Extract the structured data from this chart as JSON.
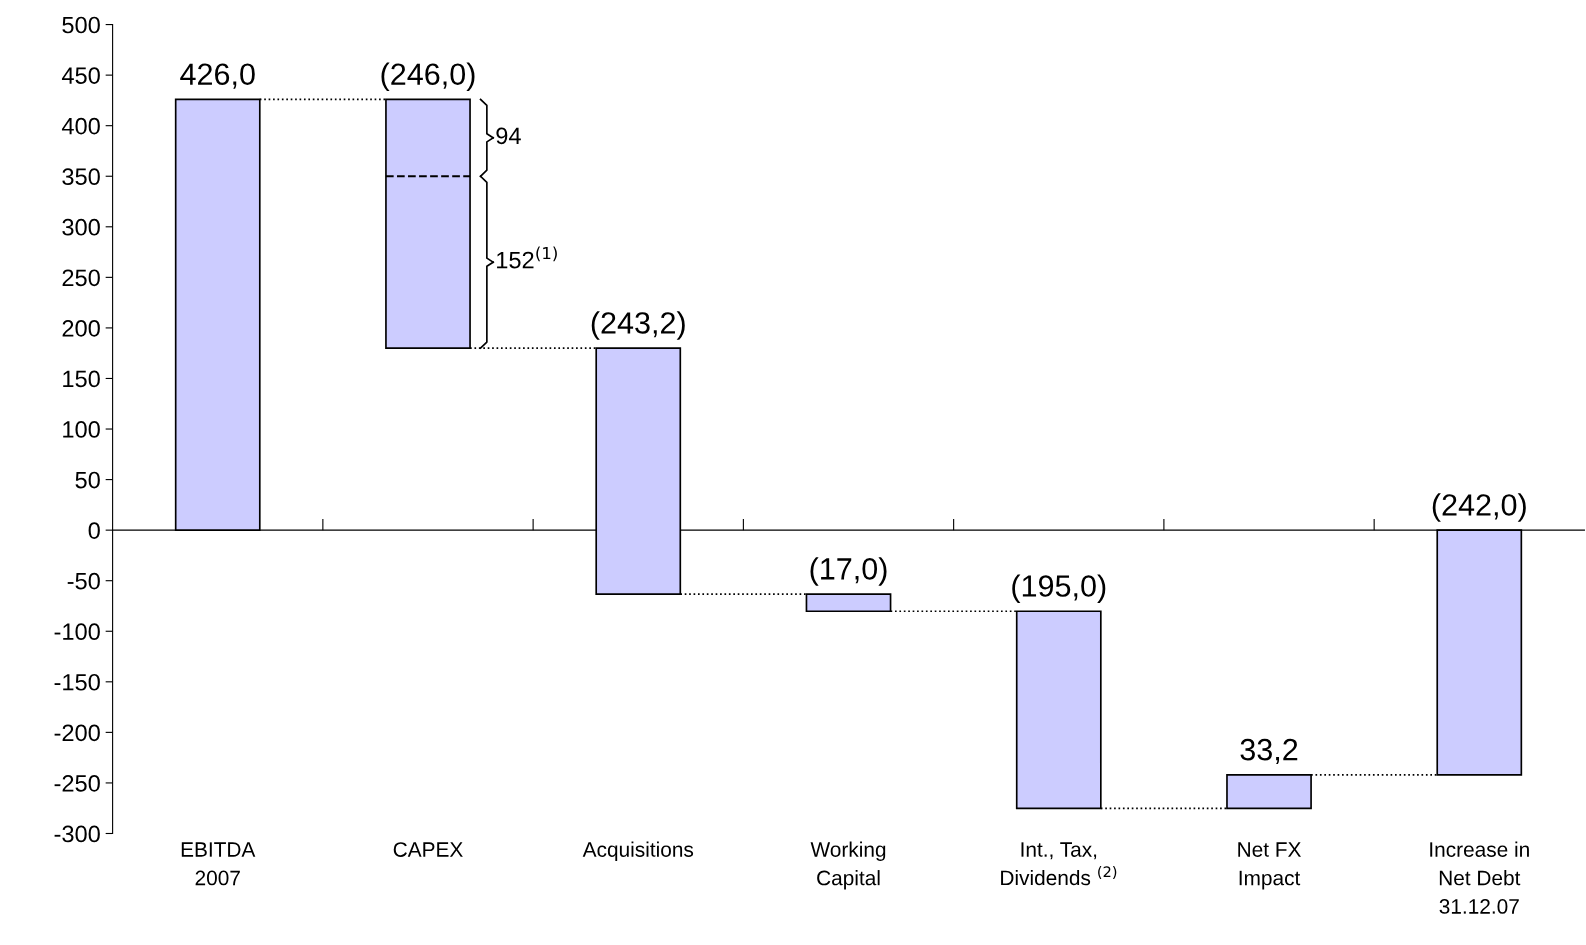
{
  "chart_data": {
    "type": "bar",
    "categories": [
      "EBITDA\n2007",
      "CAPEX",
      "Acquisitions",
      "Working\nCapital",
      "Int., Tax,\nDividends $^{(2)}$",
      "Net FX\nImpact",
      "Increase in\nNet Debt\n31.12.07"
    ],
    "values": [
      426.0,
      -246.0,
      -243.2,
      -17.0,
      -195.0,
      33.2,
      -242.0
    ],
    "base": [
      0,
      426.0,
      180.0,
      -63.2,
      -80.2,
      -275.2,
      0
    ],
    "value_labels": [
      "426,0",
      "(246,0)",
      "(243,2)",
      "(17,0)",
      "(195,0)",
      "33,2",
      "(242,0)"
    ],
    "color": "#ccccff",
    "ylim": [
      -300,
      500
    ],
    "yticks": [
      -300,
      -250,
      -200,
      -150,
      -100,
      -50,
      0,
      50,
      100,
      150,
      200,
      250,
      300,
      350,
      400,
      450,
      500
    ],
    "annotations": [
      "94",
      "152$^{(1)}$"
    ]
  }
}
